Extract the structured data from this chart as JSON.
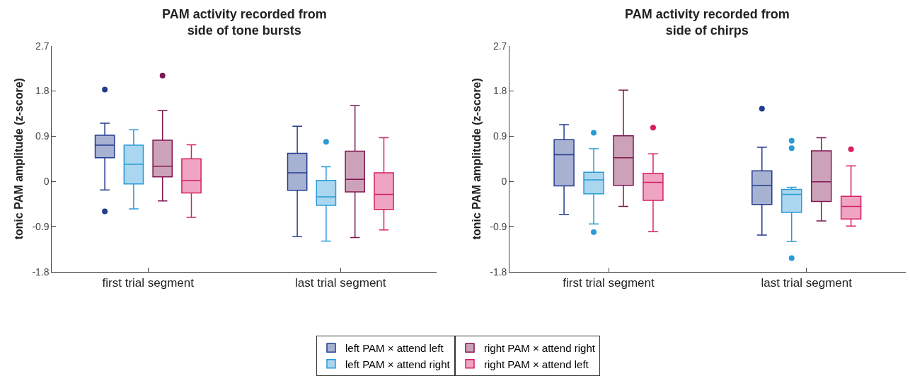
{
  "chart_data": [
    {
      "type": "box",
      "title": "PAM activity recorded from\nside of tone bursts",
      "ylabel": "tonic PAM amplitude (z-score)",
      "categories": [
        "first trial segment",
        "last trial segment"
      ],
      "ylim": [
        -1.8,
        2.7
      ],
      "yticks": [
        -1.8,
        -0.9,
        0,
        0.9,
        1.8,
        2.7
      ],
      "legend": "bottom",
      "marker": "circle",
      "series": [
        {
          "name": "left PAM × attend left",
          "color": "#233c8e",
          "boxes": [
            {
              "low": -0.17,
              "q1": 0.47,
              "median": 0.72,
              "q3": 0.92,
              "high": 1.16,
              "outliers": [
                1.83,
                -0.6
              ]
            },
            {
              "low": -1.1,
              "q1": -0.18,
              "median": 0.17,
              "q3": 0.56,
              "high": 1.1
            }
          ]
        },
        {
          "name": "left PAM × attend right",
          "color": "#2a9ad7",
          "boxes": [
            {
              "low": -0.55,
              "q1": -0.05,
              "median": 0.34,
              "q3": 0.72,
              "high": 1.03
            },
            {
              "low": -1.19,
              "q1": -0.48,
              "median": -0.31,
              "q3": 0.02,
              "high": 0.29,
              "outliers": [
                0.79
              ]
            }
          ]
        },
        {
          "name": "right PAM × attend right",
          "color": "#7f1650",
          "boxes": [
            {
              "low": -0.39,
              "q1": 0.09,
              "median": 0.3,
              "q3": 0.82,
              "high": 1.41,
              "outliers": [
                2.11
              ]
            },
            {
              "low": -1.12,
              "q1": -0.21,
              "median": 0.04,
              "q3": 0.6,
              "high": 1.51
            }
          ]
        },
        {
          "name": "right PAM × attend left",
          "color": "#d81e63",
          "boxes": [
            {
              "low": -0.72,
              "q1": -0.23,
              "median": 0.02,
              "q3": 0.45,
              "high": 0.73
            },
            {
              "low": -0.97,
              "q1": -0.56,
              "median": -0.26,
              "q3": 0.17,
              "high": 0.87
            }
          ]
        }
      ]
    },
    {
      "type": "box",
      "title": "PAM activity recorded from\nside of chirps",
      "ylabel": "tonic PAM amplitude (z-score)",
      "categories": [
        "first trial segment",
        "last trial segment"
      ],
      "ylim": [
        -1.8,
        2.7
      ],
      "yticks": [
        -1.8,
        -0.9,
        0,
        0.9,
        1.8,
        2.7
      ],
      "marker": "circle",
      "series": [
        {
          "color": "#233c8e",
          "boxes": [
            {
              "low": -0.66,
              "q1": -0.09,
              "median": 0.53,
              "q3": 0.83,
              "high": 1.13
            },
            {
              "low": -1.07,
              "q1": -0.46,
              "median": -0.08,
              "q3": 0.21,
              "high": 0.68,
              "outliers": [
                1.45
              ]
            }
          ]
        },
        {
          "color": "#2a9ad7",
          "boxes": [
            {
              "low": -0.85,
              "q1": -0.25,
              "median": 0.03,
              "q3": 0.18,
              "high": 0.65,
              "outliers": [
                0.97,
                -1.01
              ]
            },
            {
              "low": -1.2,
              "q1": -0.62,
              "median": -0.26,
              "q3": -0.16,
              "high": -0.12,
              "outliers": [
                0.81,
                0.66,
                -1.53
              ]
            }
          ]
        },
        {
          "color": "#7f1650",
          "boxes": [
            {
              "low": -0.5,
              "q1": -0.08,
              "median": 0.47,
              "q3": 0.91,
              "high": 1.82
            },
            {
              "low": -0.79,
              "q1": -0.4,
              "median": -0.01,
              "q3": 0.61,
              "high": 0.87
            }
          ]
        },
        {
          "color": "#d81e63",
          "boxes": [
            {
              "low": -1.0,
              "q1": -0.38,
              "median": -0.02,
              "q3": 0.16,
              "high": 0.55,
              "outliers": [
                1.07
              ]
            },
            {
              "low": -0.89,
              "q1": -0.75,
              "median": -0.5,
              "q3": -0.3,
              "high": 0.31,
              "outliers": [
                0.64
              ]
            }
          ]
        }
      ]
    }
  ]
}
